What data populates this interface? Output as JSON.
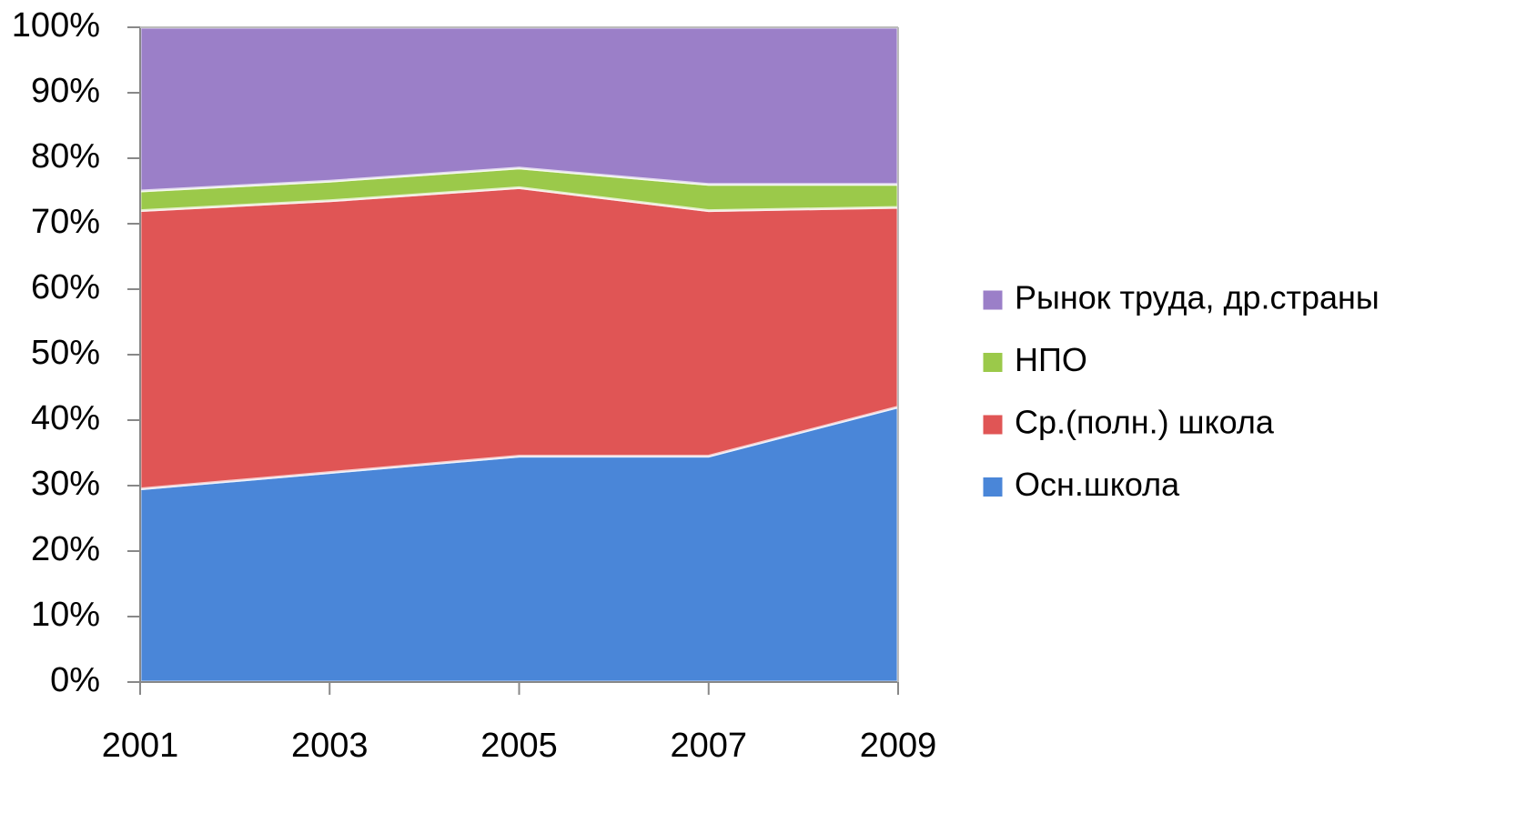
{
  "chart_data": {
    "type": "stacked_area",
    "x": [
      2001,
      2003,
      2005,
      2007,
      2009
    ],
    "xlim": [
      2001,
      2009
    ],
    "xticks": [
      2001,
      2003,
      2005,
      2007,
      2009
    ],
    "ylim": [
      0,
      100
    ],
    "yticks": [
      {
        "value": 0,
        "label": "0%"
      },
      {
        "value": 10,
        "label": "10%"
      },
      {
        "value": 20,
        "label": "20%"
      },
      {
        "value": 30,
        "label": "30%"
      },
      {
        "value": 40,
        "label": "40%"
      },
      {
        "value": 50,
        "label": "50%"
      },
      {
        "value": 60,
        "label": "60%"
      },
      {
        "value": 70,
        "label": "70%"
      },
      {
        "value": 80,
        "label": "80%"
      },
      {
        "value": 90,
        "label": "90%"
      },
      {
        "value": 100,
        "label": "100%"
      }
    ],
    "legend": "right",
    "series": [
      {
        "name": "Осн.школа",
        "color": "#4a86d8",
        "values": [
          29.5,
          32,
          34.5,
          34.5,
          42
        ]
      },
      {
        "name": "Ср.(полн.) школа",
        "color": "#e05555",
        "values": [
          42.5,
          41.5,
          41,
          37.5,
          30.5
        ]
      },
      {
        "name": "НПО",
        "color": "#9bc94a",
        "values": [
          3,
          3,
          3,
          4,
          3.5
        ]
      },
      {
        "name": "Рынок труда, др.страны",
        "color": "#9b7fc8",
        "values": [
          25,
          23.5,
          21.5,
          24,
          24
        ]
      }
    ]
  }
}
